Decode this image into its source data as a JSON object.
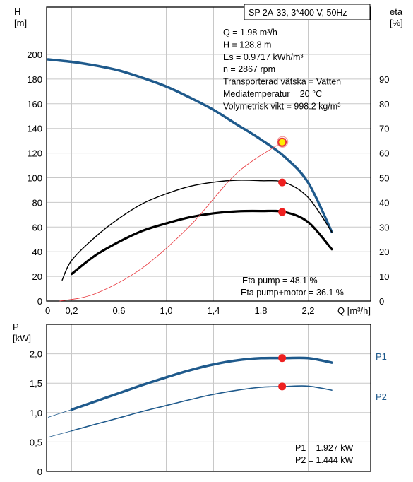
{
  "chart_data": [
    {
      "type": "line",
      "title": "SP 2A-33, 3*400 V, 50Hz",
      "xlabel": "Q [m³/h]",
      "ylabel": "H [m]",
      "ylabel_right": "eta [%]",
      "xlim": [
        0,
        2.6
      ],
      "ylim": [
        0,
        200
      ],
      "ylim_right": [
        0,
        100
      ],
      "x_ticks": [
        "0",
        "0,2",
        "0,6",
        "1,0",
        "1,4",
        "1,8",
        "2,2"
      ],
      "x_tick_values": [
        0,
        0.2,
        0.6,
        1.0,
        1.4,
        1.8,
        2.2
      ],
      "y_ticks": [
        0,
        20,
        40,
        60,
        80,
        100,
        120,
        140,
        160,
        180,
        200
      ],
      "y_ticks_right": [
        0,
        10,
        20,
        30,
        40,
        50,
        60,
        70,
        80,
        90
      ],
      "grid": true,
      "info_lines": [
        "Q = 1.98 m³/h",
        "H = 128.8 m",
        "Es = 0.9717 kWh/m³",
        "n = 2867 rpm",
        "Transporterad vätska = Vatten",
        "Mediatemperatur = 20 °C",
        "Volymetrisk vikt = 998.2 kg/m³"
      ],
      "eta_labels": [
        "Eta pump = 48.1 %",
        "Eta pump+motor = 36.1 %"
      ],
      "series": [
        {
          "color": "#1f5a8c",
          "axis": "left",
          "x": [
            0.0,
            0.2,
            0.4,
            0.6,
            0.8,
            1.0,
            1.2,
            1.4,
            1.6,
            1.8,
            2.0,
            2.2,
            2.4
          ],
          "y": [
            196,
            194,
            191,
            187,
            181,
            174,
            165,
            155,
            143,
            131,
            117,
            96,
            56
          ]
        },
        {
          "color": "#1f5a8c",
          "axis": "left",
          "x": [
            0.0,
            0.2
          ],
          "y": [
            196,
            194
          ]
        },
        {
          "color": "#000000",
          "axis": "right",
          "x": [
            0.12,
            0.2,
            0.4,
            0.6,
            0.8,
            1.0,
            1.2,
            1.4,
            1.6,
            1.8,
            2.0,
            2.2,
            2.4
          ],
          "y": [
            8.5,
            16.5,
            26,
            33.5,
            39.5,
            43.5,
            46.5,
            48.2,
            49,
            48.8,
            48.1,
            42,
            28
          ]
        },
        {
          "color": "#000000",
          "axis": "right",
          "x": [
            0.2,
            0.4,
            0.6,
            0.8,
            1.0,
            1.2,
            1.4,
            1.6,
            1.8,
            2.0,
            2.2,
            2.4
          ],
          "y": [
            11,
            18.5,
            24,
            28.5,
            31.5,
            34,
            35.6,
            36.4,
            36.5,
            36.1,
            32,
            21
          ]
        },
        {
          "color": "#e8353b",
          "axis": "left",
          "x": [
            0.1,
            0.4,
            0.8,
            1.2,
            1.6,
            1.98
          ],
          "y": [
            0,
            6,
            27,
            61,
            104,
            128.8
          ]
        }
      ],
      "duty_points": [
        {
          "x": 1.98,
          "y": 128.8,
          "axis": "left",
          "fill": "#ffee00"
        },
        {
          "x": 1.98,
          "y": 48.1,
          "axis": "right",
          "fill": "#ee2020"
        },
        {
          "x": 1.98,
          "y": 36.1,
          "axis": "right",
          "fill": "#ee2020"
        }
      ]
    },
    {
      "type": "line",
      "xlabel": "",
      "ylabel": "P [kW]",
      "xlim": [
        0,
        2.6
      ],
      "ylim": [
        0,
        2.2
      ],
      "y_ticks": [
        "0",
        "0,5",
        "1,0",
        "1,5",
        "2,0"
      ],
      "y_tick_values": [
        0,
        0.5,
        1.0,
        1.5,
        2.0
      ],
      "grid": true,
      "power_labels": [
        "P1 = 1.927 kW",
        "P2 = 1.444 kW"
      ],
      "series": [
        {
          "name": "P1",
          "color": "#1f5a8c",
          "x": [
            0.0,
            0.2,
            0.4,
            0.6,
            0.8,
            1.0,
            1.2,
            1.4,
            1.6,
            1.8,
            2.0,
            2.2,
            2.4
          ],
          "y": [
            0.92,
            1.05,
            1.19,
            1.33,
            1.47,
            1.6,
            1.72,
            1.82,
            1.89,
            1.925,
            1.927,
            1.925,
            1.85
          ]
        },
        {
          "name": "P2",
          "color": "#1f5a8c",
          "x": [
            0.0,
            0.2,
            0.4,
            0.6,
            0.8,
            1.0,
            1.2,
            1.4,
            1.6,
            1.8,
            2.0,
            2.2,
            2.4
          ],
          "y": [
            0.58,
            0.69,
            0.8,
            0.91,
            1.02,
            1.12,
            1.22,
            1.31,
            1.38,
            1.43,
            1.444,
            1.45,
            1.38
          ]
        }
      ],
      "duty_points": [
        {
          "x": 1.98,
          "y": 1.927,
          "fill": "#ee2020"
        },
        {
          "x": 1.98,
          "y": 1.444,
          "fill": "#ee2020"
        }
      ]
    }
  ]
}
